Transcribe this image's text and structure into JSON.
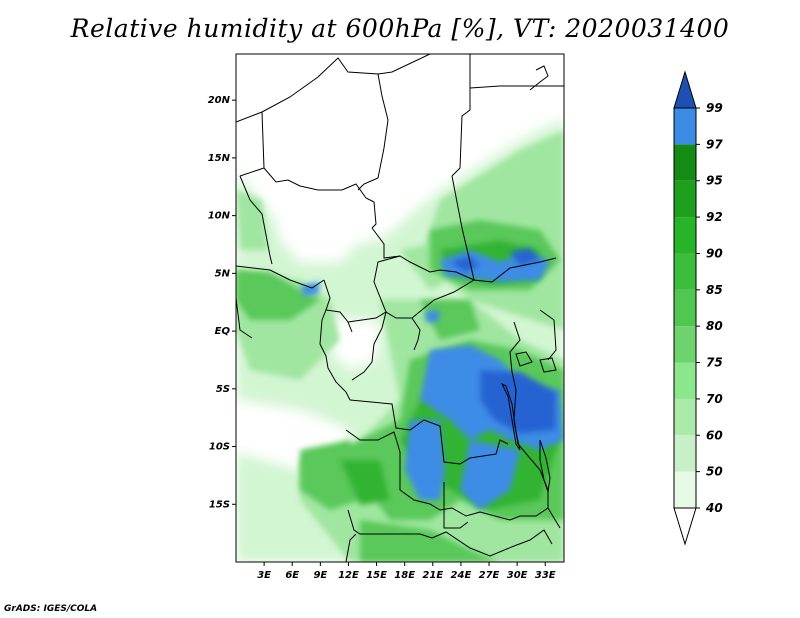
{
  "title": "Relative humidity at 600hPa [%], VT: 2020031400",
  "credit": "GrADS: IGES/COLA",
  "map": {
    "lon_range": [
      0,
      35
    ],
    "lat_range": [
      -20,
      24
    ],
    "lat_labels": [
      {
        "lat": 20,
        "label": "20N"
      },
      {
        "lat": 15,
        "label": "15N"
      },
      {
        "lat": 10,
        "label": "10N"
      },
      {
        "lat": 5,
        "label": "5N"
      },
      {
        "lat": 0,
        "label": "EQ"
      },
      {
        "lat": -5,
        "label": "5S"
      },
      {
        "lat": -10,
        "label": "10S"
      },
      {
        "lat": -15,
        "label": "15S"
      }
    ],
    "lon_labels": [
      {
        "lon": 3,
        "label": "3E"
      },
      {
        "lon": 6,
        "label": "6E"
      },
      {
        "lon": 9,
        "label": "9E"
      },
      {
        "lon": 12,
        "label": "12E"
      },
      {
        "lon": 15,
        "label": "15E"
      },
      {
        "lon": 18,
        "label": "18E"
      },
      {
        "lon": 21,
        "label": "21E"
      },
      {
        "lon": 24,
        "label": "24E"
      },
      {
        "lon": 27,
        "label": "27E"
      },
      {
        "lon": 30,
        "label": "30E"
      },
      {
        "lon": 33,
        "label": "33E"
      }
    ]
  },
  "colorbar": {
    "levels": [
      "40",
      "50",
      "60",
      "70",
      "75",
      "80",
      "85",
      "90",
      "92",
      "95",
      "97",
      "99"
    ],
    "colors": [
      "#e6fae6",
      "#c8f0c8",
      "#aaebaa",
      "#8ce68c",
      "#6ed26e",
      "#50c850",
      "#3cbe3c",
      "#28b428",
      "#1ea01e",
      "#148c14",
      "#3c8ce6",
      "#2864d2",
      "#1e50b4"
    ],
    "min_color": "#ffffff"
  },
  "colors": {
    "rh_40_60": "#d2f5d2",
    "rh_60_75": "#a0e6a0",
    "rh_75_85": "#5ac85a",
    "rh_85_95": "#32b432",
    "rh_95_97": "#3c8ce6",
    "rh_97_99": "#2864d2"
  }
}
